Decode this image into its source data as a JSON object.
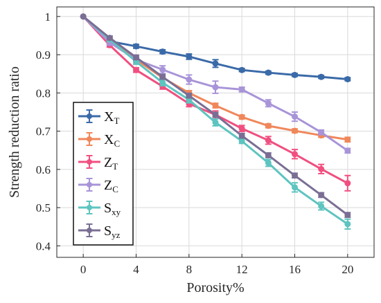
{
  "chart_data": {
    "type": "line",
    "xlabel": "Porosity%",
    "ylabel": "Strength reduction ratio",
    "xlim": [
      -2,
      22
    ],
    "ylim": [
      0.37,
      1.025
    ],
    "xticks": [
      "0",
      "4",
      "8",
      "12",
      "16",
      "20"
    ],
    "xtick_values": [
      0,
      4,
      8,
      12,
      16,
      20
    ],
    "yticks": [
      "0.4",
      "0.5",
      "0.6",
      "0.7",
      "0.8",
      "0.9",
      "1"
    ],
    "ytick_values": [
      0.4,
      0.5,
      0.6,
      0.7,
      0.8,
      0.9,
      1.0
    ],
    "grid": true,
    "legend_position": "bottom-left",
    "x": [
      0,
      2,
      4,
      6,
      8,
      10,
      12,
      14,
      16,
      18,
      20
    ],
    "series": [
      {
        "name": "X",
        "sub": "T",
        "color": "#3a6aa8",
        "values": [
          1.0,
          0.935,
          0.922,
          0.908,
          0.895,
          0.877,
          0.86,
          0.853,
          0.847,
          0.842,
          0.836
        ],
        "errors": [
          0,
          0.006,
          0.005,
          0.005,
          0.007,
          0.01,
          0.004,
          0.004,
          0.004,
          0.004,
          0.004
        ]
      },
      {
        "name": "X",
        "sub": "C",
        "color": "#f0875a",
        "values": [
          1.0,
          0.94,
          0.887,
          0.84,
          0.8,
          0.767,
          0.737,
          0.714,
          0.701,
          0.689,
          0.678
        ],
        "errors": [
          0,
          0.005,
          0.005,
          0.005,
          0.006,
          0.006,
          0.005,
          0.005,
          0.005,
          0.005,
          0.006
        ]
      },
      {
        "name": "Z",
        "sub": "T",
        "color": "#f04f80",
        "values": [
          1.0,
          0.925,
          0.86,
          0.817,
          0.772,
          0.743,
          0.707,
          0.676,
          0.64,
          0.601,
          0.564
        ],
        "errors": [
          0,
          0.005,
          0.006,
          0.007,
          0.008,
          0.01,
          0.008,
          0.01,
          0.012,
          0.012,
          0.02
        ]
      },
      {
        "name": "Z",
        "sub": "C",
        "color": "#a894d8",
        "values": [
          1.0,
          0.932,
          0.887,
          0.861,
          0.835,
          0.815,
          0.809,
          0.773,
          0.738,
          0.697,
          0.649
        ],
        "errors": [
          0,
          0.007,
          0.008,
          0.01,
          0.012,
          0.016,
          0.006,
          0.009,
          0.012,
          0.006,
          0.006
        ]
      },
      {
        "name": "S",
        "sub": "xy",
        "color": "#5ec4c0",
        "values": [
          1.0,
          0.94,
          0.882,
          0.827,
          0.782,
          0.723,
          0.674,
          0.617,
          0.553,
          0.504,
          0.457
        ],
        "errors": [
          0,
          0.005,
          0.007,
          0.008,
          0.008,
          0.009,
          0.006,
          0.009,
          0.012,
          0.01,
          0.013
        ]
      },
      {
        "name": "S",
        "sub": "yz",
        "color": "#7a6e94",
        "values": [
          1.0,
          0.944,
          0.893,
          0.842,
          0.793,
          0.743,
          0.688,
          0.637,
          0.584,
          0.533,
          0.481
        ],
        "errors": [
          0,
          0.005,
          0.006,
          0.006,
          0.006,
          0.006,
          0.006,
          0.006,
          0.006,
          0.006,
          0.006
        ]
      }
    ]
  }
}
